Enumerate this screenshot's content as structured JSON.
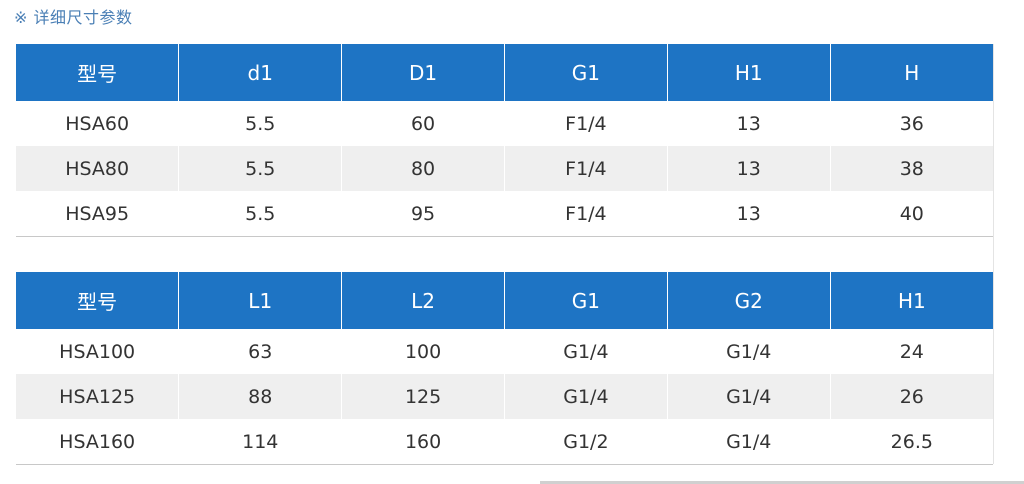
{
  "section_title": "※ 详细尺寸参数",
  "tables": [
    {
      "headers": [
        "型号",
        "d1",
        "D1",
        "G1",
        "H1",
        "H"
      ],
      "rows": [
        [
          "HSA60",
          "5.5",
          "60",
          "F1/4",
          "13",
          "36"
        ],
        [
          "HSA80",
          "5.5",
          "80",
          "F1/4",
          "13",
          "38"
        ],
        [
          "HSA95",
          "5.5",
          "95",
          "F1/4",
          "13",
          "40"
        ]
      ]
    },
    {
      "headers": [
        "型号",
        "L1",
        "L2",
        "G1",
        "G2",
        "H1"
      ],
      "rows": [
        [
          "HSA100",
          "63",
          "100",
          "G1/4",
          "G1/4",
          "24"
        ],
        [
          "HSA125",
          "88",
          "125",
          "G1/4",
          "G1/4",
          "26"
        ],
        [
          "HSA160",
          "114",
          "160",
          "G1/2",
          "G1/4",
          "26.5"
        ]
      ]
    }
  ],
  "colors": {
    "header_bg": "#1e74c4",
    "header_text": "#ffffff",
    "row_alt_bg": "#efefef",
    "title_text": "#4a7fb5"
  }
}
